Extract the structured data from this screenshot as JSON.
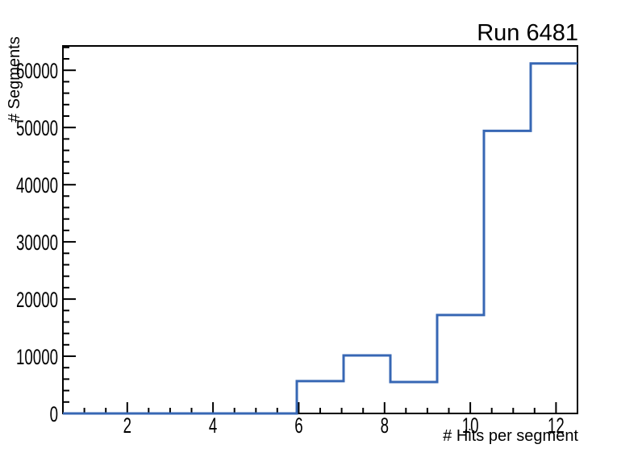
{
  "canvas": {
    "background": "#ffffff"
  },
  "chart_data": {
    "type": "histogram",
    "title": "Run 6481",
    "xlabel": "# Hits per segment",
    "ylabel": "# Segments",
    "xlim": [
      0.5,
      12.5
    ],
    "ylim": [
      0,
      64260
    ],
    "bin_edges": [
      0.5,
      1.5909,
      2.6818,
      3.7727,
      4.8636,
      5.9545,
      7.0455,
      8.1364,
      9.2273,
      10.3182,
      11.4091,
      12.5
    ],
    "values": [
      0,
      0,
      0,
      0,
      0,
      5650,
      10150,
      5500,
      17200,
      49400,
      61200
    ],
    "x_major_ticks": [
      2,
      4,
      6,
      8,
      10,
      12
    ],
    "x_tick_labels": [
      "2",
      "4",
      "6",
      "8",
      "10",
      "12"
    ],
    "x_minor_tick_step": 0.5,
    "y_major_tick_step": 10000,
    "y_tick_labels": [
      "0",
      "10000",
      "20000",
      "30000",
      "40000",
      "50000",
      "60000"
    ],
    "y_minor_tick_step": 2000,
    "grid": false,
    "legend": null,
    "line_color": "#3767b4",
    "axis_color": "#000000",
    "text_color": "#000000"
  }
}
